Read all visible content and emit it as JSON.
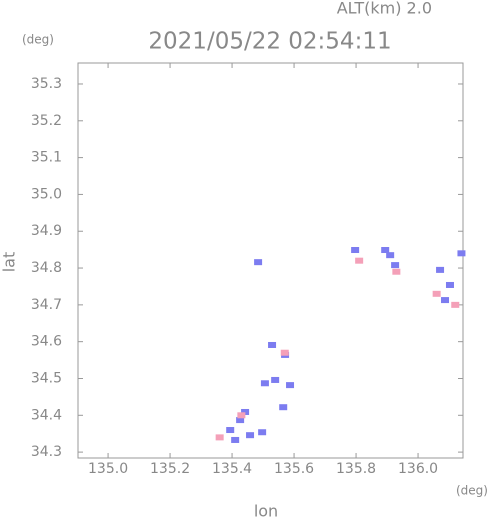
{
  "chart_data": {
    "type": "scatter",
    "title": "2021/05/22 02:54:11",
    "annotation": "ALT(km) 2.0",
    "x_label": "lon",
    "y_label": "lat",
    "x_unit": "(deg)",
    "y_unit": "(deg)",
    "xlim": [
      134.903,
      136.145
    ],
    "ylim": [
      34.284,
      35.357
    ],
    "xticks": [
      {
        "value": 135.0,
        "label": "135.0"
      },
      {
        "value": 135.2,
        "label": "135.2"
      },
      {
        "value": 135.4,
        "label": "135.4"
      },
      {
        "value": 135.6,
        "label": "135.6"
      },
      {
        "value": 135.8,
        "label": "135.8"
      },
      {
        "value": 136.0,
        "label": "136.0"
      }
    ],
    "yticks": [
      {
        "value": 34.3,
        "label": "34.3"
      },
      {
        "value": 34.4,
        "label": "34.4"
      },
      {
        "value": 34.5,
        "label": "34.5"
      },
      {
        "value": 34.6,
        "label": "34.6"
      },
      {
        "value": 34.7,
        "label": "34.7"
      },
      {
        "value": 34.8,
        "label": "34.8"
      },
      {
        "value": 34.9,
        "label": "34.9"
      },
      {
        "value": 35.0,
        "label": "35.0"
      },
      {
        "value": 35.1,
        "label": "35.1"
      },
      {
        "value": 35.2,
        "label": "35.2"
      },
      {
        "value": 35.3,
        "label": "35.3"
      }
    ],
    "series": [
      {
        "color": "#7c7cf0",
        "x": [
          135.394,
          135.426,
          135.458,
          135.497,
          135.41,
          135.442,
          135.539,
          135.587,
          135.506,
          135.529,
          135.571,
          135.565,
          135.797,
          135.894,
          135.926,
          135.91,
          136.071,
          136.103,
          136.087,
          136.14,
          135.484
        ],
        "y": [
          34.36,
          34.387,
          34.346,
          34.354,
          34.333,
          34.409,
          34.496,
          34.482,
          34.487,
          34.591,
          34.564,
          34.422,
          34.849,
          34.849,
          34.808,
          34.835,
          34.795,
          34.754,
          34.713,
          34.84,
          34.816
        ]
      },
      {
        "color": "#f4a0b8",
        "x": [
          135.43,
          135.57,
          135.81,
          135.93,
          136.06,
          136.12,
          135.36
        ],
        "y": [
          34.4,
          34.57,
          34.82,
          34.79,
          34.73,
          34.7,
          34.34
        ]
      }
    ]
  }
}
